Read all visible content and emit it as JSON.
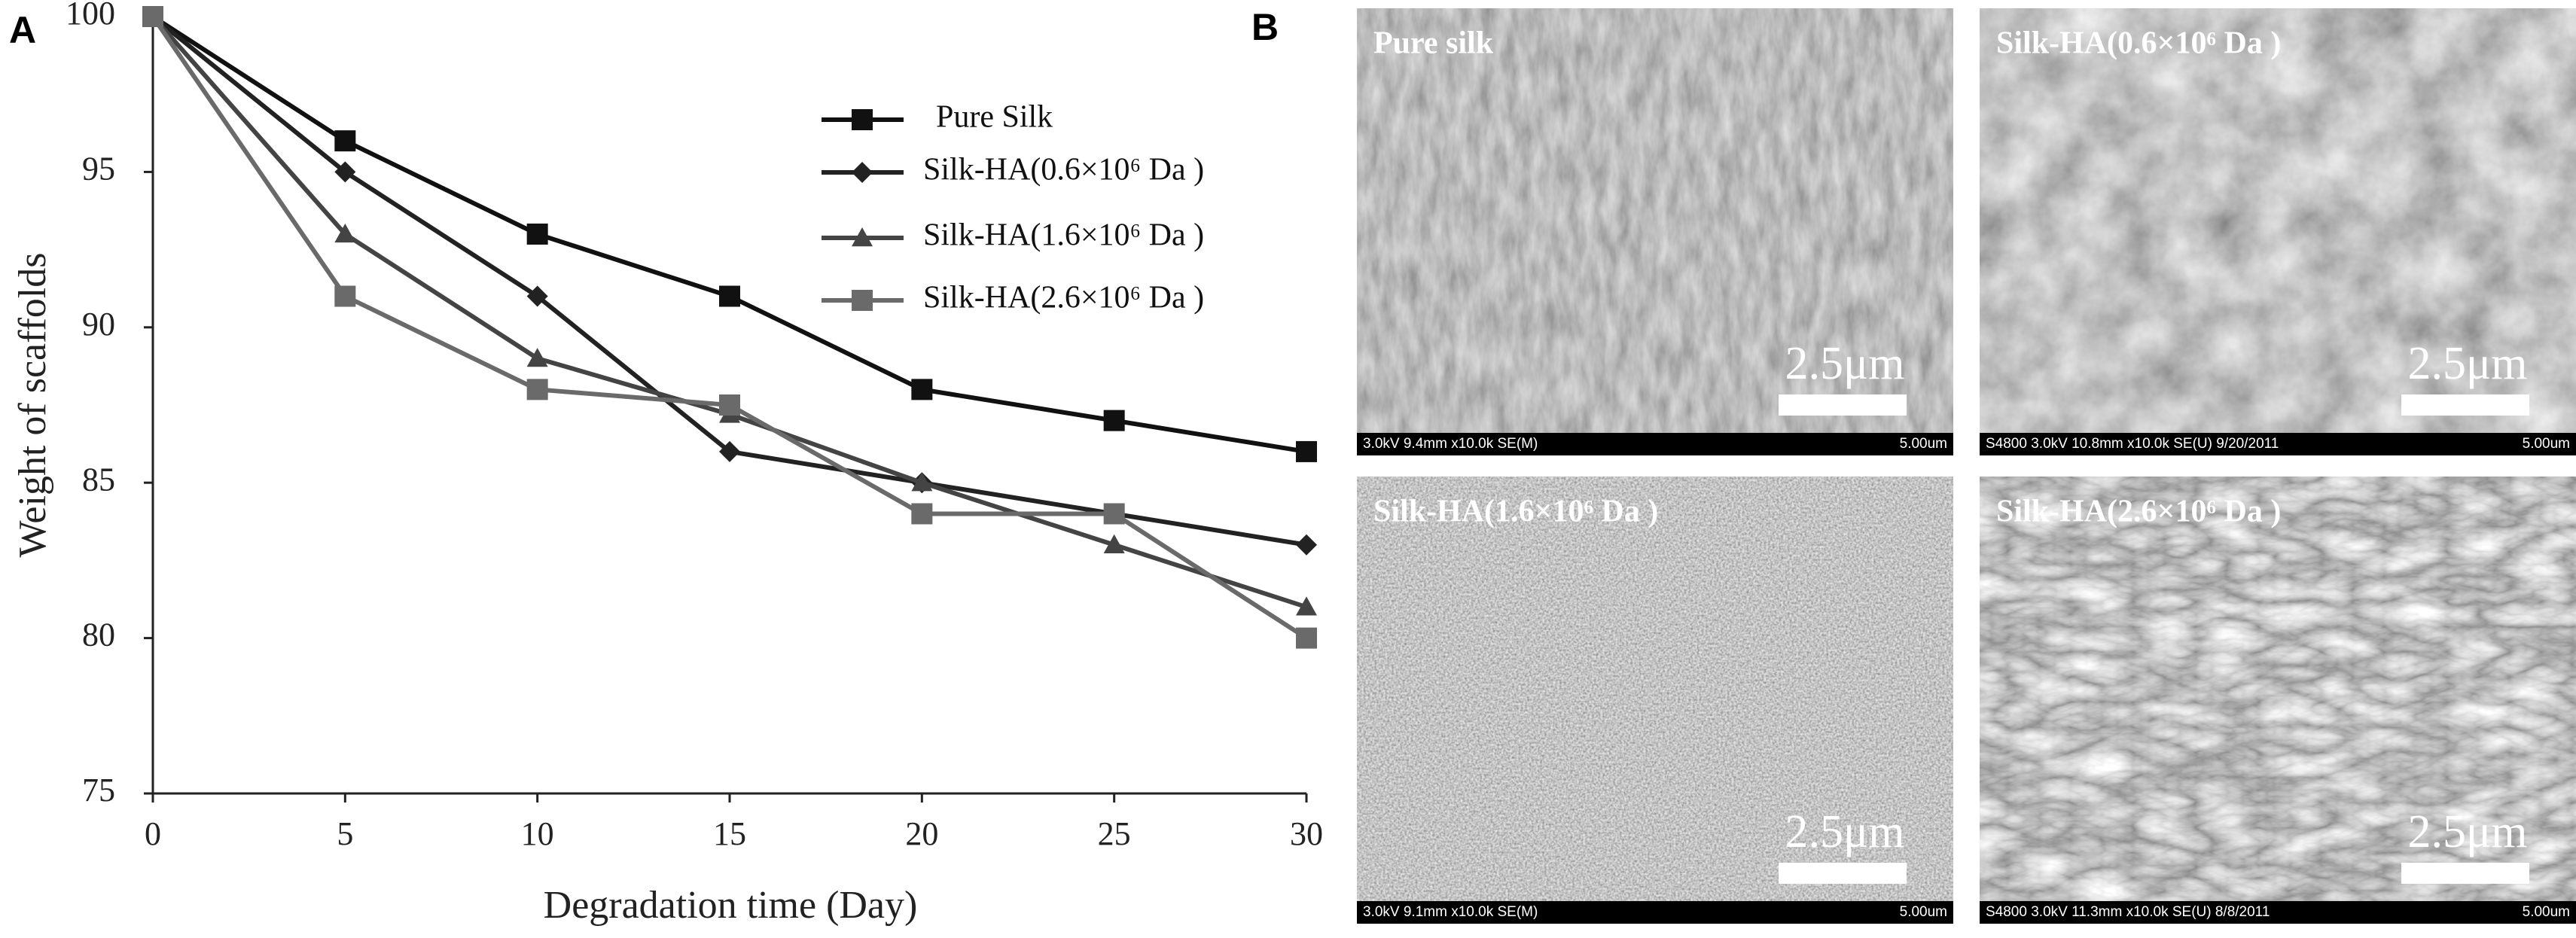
{
  "panel_labels": [
    "A",
    "B"
  ],
  "chart_data": {
    "type": "line",
    "xlabel": "Degradation time (Day)",
    "ylabel": "Weight of scaffolds",
    "x": [
      0,
      5,
      10,
      15,
      20,
      25,
      30
    ],
    "xlim": [
      0,
      30
    ],
    "xticks": [
      0,
      5,
      10,
      15,
      20,
      25,
      30
    ],
    "ylim": [
      75,
      100
    ],
    "yticks": [
      75,
      80,
      85,
      90,
      95,
      100
    ],
    "grid": false,
    "series": [
      {
        "name": "Pure Silk",
        "color": "#111111",
        "marker": "square",
        "values": [
          100,
          96,
          93,
          91,
          88,
          87,
          86
        ]
      },
      {
        "name": "Silk-HA(0.6×10⁶ Da )",
        "color": "#222222",
        "marker": "diamond",
        "values": [
          100,
          95,
          91,
          86,
          85,
          84,
          83
        ]
      },
      {
        "name": "Silk-HA(1.6×10⁶ Da )",
        "color": "#444444",
        "marker": "triangle",
        "values": [
          100,
          93,
          89,
          87.2,
          85,
          83,
          81
        ]
      },
      {
        "name": "Silk-HA(2.6×10⁶ Da )",
        "color": "#6a6a6a",
        "marker": "square",
        "values": [
          100,
          91,
          88,
          87.5,
          84,
          84,
          80
        ]
      }
    ]
  },
  "sem_panels": [
    {
      "label": "Pure silk",
      "scale_bar": "2.5μm",
      "info_left": "3.0kV 9.4mm x10.0k SE(M)",
      "info_right": "5.00um"
    },
    {
      "label": "Silk-HA(0.6×10⁶ Da )",
      "scale_bar": "2.5μm",
      "info_left": "S4800 3.0kV 10.8mm x10.0k SE(U) 9/20/2011",
      "info_right": "5.00um"
    },
    {
      "label": "Silk-HA(1.6×10⁶ Da )",
      "scale_bar": "2.5μm",
      "info_left": "3.0kV 9.1mm x10.0k SE(M)",
      "info_right": "5.00um"
    },
    {
      "label": "Silk-HA(2.6×10⁶ Da )",
      "scale_bar": "2.5μm",
      "info_left": "S4800 3.0kV 11.3mm x10.0k SE(U) 8/8/2011",
      "info_right": "5.00um"
    }
  ]
}
